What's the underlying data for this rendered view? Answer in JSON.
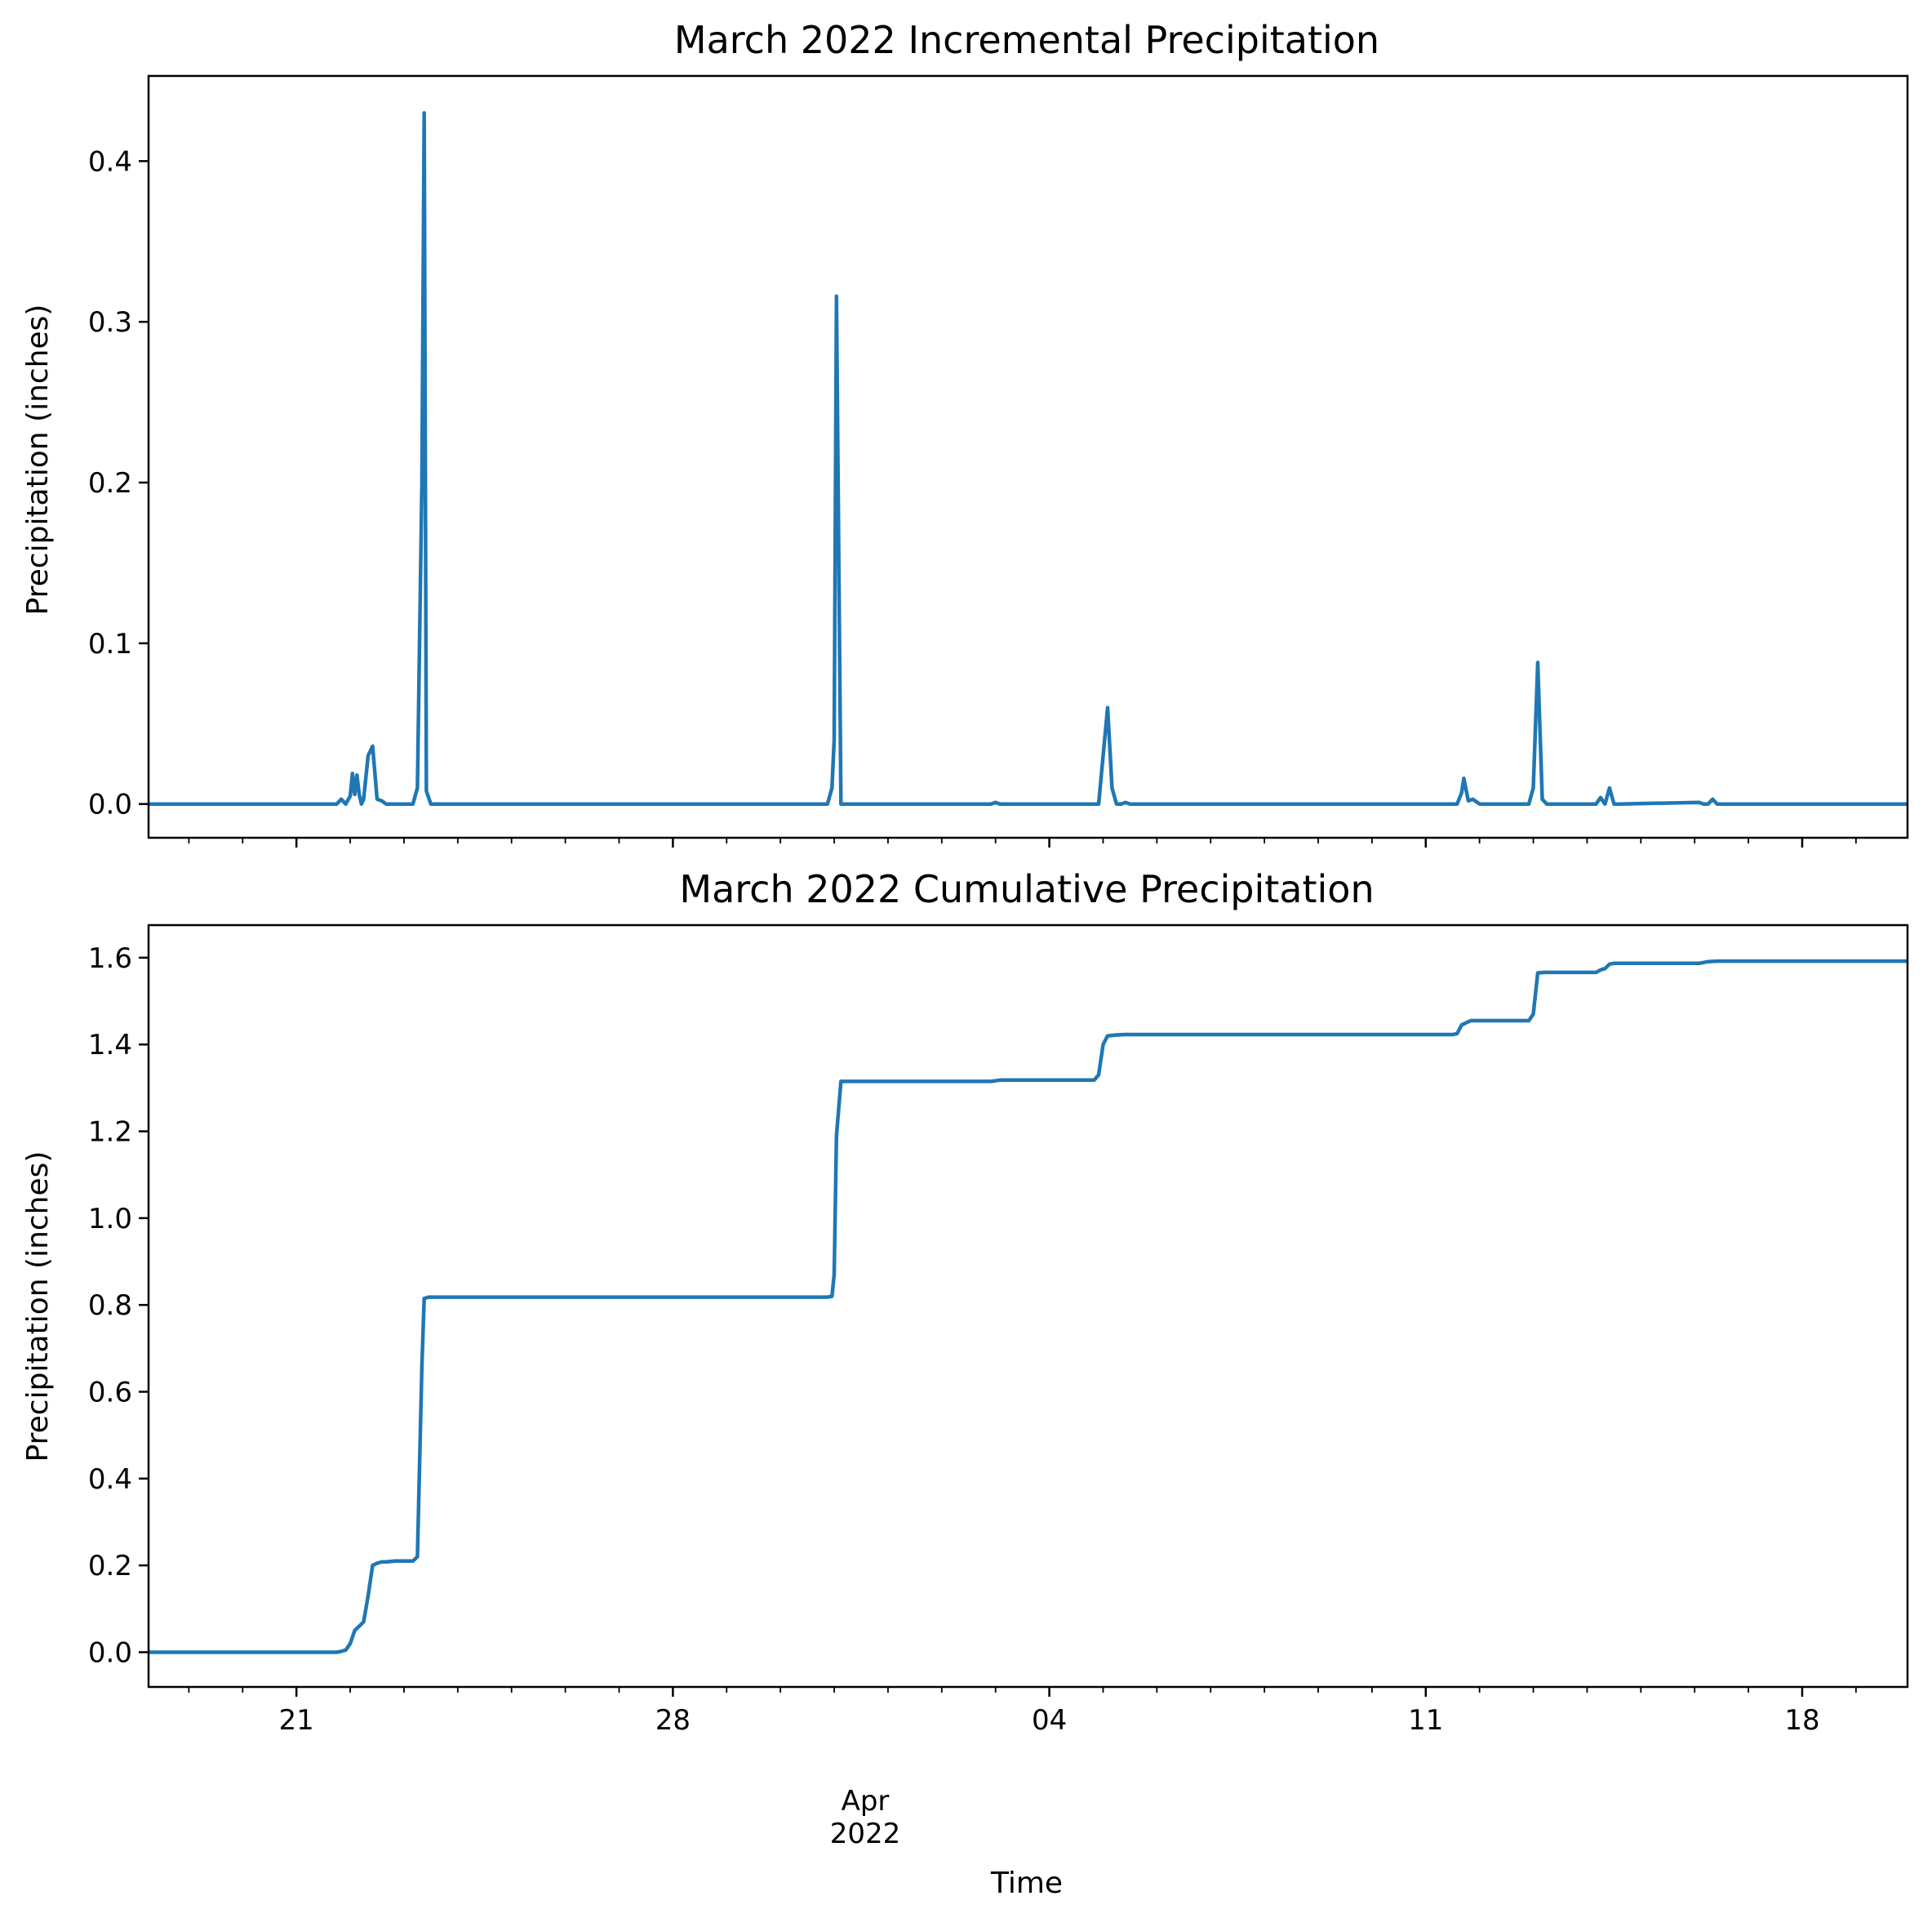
{
  "chart_data": [
    {
      "type": "line",
      "title": "March 2022 Incremental Precipitation",
      "xlabel": "",
      "ylabel": "Precipitation (inches)",
      "ylim": [
        -0.021,
        0.453
      ],
      "xlim": [
        "2022-03-18T06:00",
        "2022-04-19T23:00"
      ],
      "yticks": [
        0.0,
        0.1,
        0.2,
        0.3,
        0.4
      ],
      "ytick_labels": [
        "0.0",
        "0.1",
        "0.2",
        "0.3",
        "0.4"
      ],
      "grid": false,
      "color": "#1f77b4",
      "series": [
        {
          "x": [
            "2022-03-18T06:00",
            "2022-03-21T18:00",
            "2022-03-21T20:00",
            "2022-03-21T22:00",
            "2022-03-22T00:00",
            "2022-03-22T01:00",
            "2022-03-22T02:00",
            "2022-03-22T03:00",
            "2022-03-22T04:00",
            "2022-03-22T05:00",
            "2022-03-22T06:00",
            "2022-03-22T08:00",
            "2022-03-22T10:00",
            "2022-03-22T12:00",
            "2022-03-22T14:00",
            "2022-03-22T16:00",
            "2022-03-22T18:00",
            "2022-03-22T20:00",
            "2022-03-23T04:00",
            "2022-03-23T06:00",
            "2022-03-23T08:00",
            "2022-03-23T09:00",
            "2022-03-23T10:00",
            "2022-03-23T12:00",
            "2022-03-23T14:00",
            "2022-03-30T21:00",
            "2022-03-30T23:00",
            "2022-03-31T00:00",
            "2022-03-31T01:00",
            "2022-03-31T03:00",
            "2022-03-31T05:00",
            "2022-04-02T22:00",
            "2022-04-03T00:00",
            "2022-04-03T02:00",
            "2022-04-04T20:00",
            "2022-04-04T22:00",
            "2022-04-05T00:00",
            "2022-04-05T02:00",
            "2022-04-05T04:00",
            "2022-04-05T06:00",
            "2022-04-05T08:00",
            "2022-04-05T10:00",
            "2022-04-05T12:00",
            "2022-04-05T14:00",
            "2022-04-11T12:00",
            "2022-04-11T14:00",
            "2022-04-11T16:00",
            "2022-04-11T17:00",
            "2022-04-11T19:00",
            "2022-04-11T21:00",
            "2022-04-12T00:00",
            "2022-04-12T22:00",
            "2022-04-13T00:00",
            "2022-04-13T02:00",
            "2022-04-13T04:00",
            "2022-04-13T06:00",
            "2022-04-14T04:00",
            "2022-04-14T06:00",
            "2022-04-14T08:00",
            "2022-04-14T10:00",
            "2022-04-14T12:00",
            "2022-04-14T14:00",
            "2022-04-16T02:00",
            "2022-04-16T04:00",
            "2022-04-16T06:00",
            "2022-04-16T08:00",
            "2022-04-16T10:00",
            "2022-04-19T23:00"
          ],
          "y": [
            0,
            0,
            0.003,
            0,
            0.005,
            0.019,
            0.006,
            0.018,
            0.006,
            0,
            0.003,
            0.03,
            0.036,
            0.003,
            0.002,
            0,
            0,
            0,
            0,
            0.01,
            0.2,
            0.43,
            0.008,
            0,
            0,
            0,
            0.01,
            0.04,
            0.316,
            0,
            0,
            0,
            0.001,
            0,
            0,
            0,
            0.03,
            0.06,
            0.01,
            0,
            0,
            0.001,
            0,
            0,
            0,
            0,
            0.007,
            0.016,
            0.002,
            0.003,
            0,
            0,
            0.01,
            0.088,
            0.003,
            0,
            0,
            0.004,
            0,
            0.01,
            0,
            0,
            0.001,
            0,
            0,
            0.003,
            0,
            0
          ]
        }
      ]
    },
    {
      "type": "line",
      "title": "March 2022 Cumulative Precipitation",
      "xlabel": "Time",
      "ylabel": "Precipitation (inches)",
      "ylim": [
        -0.08,
        1.675
      ],
      "xlim": [
        "2022-03-18T06:00",
        "2022-04-19T23:00"
      ],
      "yticks": [
        0.0,
        0.2,
        0.4,
        0.6,
        0.8,
        1.0,
        1.2,
        1.4,
        1.6
      ],
      "ytick_labels": [
        "0.0",
        "0.2",
        "0.4",
        "0.6",
        "0.8",
        "1.0",
        "1.2",
        "1.4",
        "1.6"
      ],
      "xticks": [
        "2022-03-21",
        "2022-03-28",
        "2022-04-04",
        "2022-04-11",
        "2022-04-18"
      ],
      "xtick_labels": [
        "21",
        "28",
        "04",
        "11",
        "18"
      ],
      "x_offset_label": "Apr\n2022",
      "x_offset_label_lines": [
        "Apr",
        "2022"
      ],
      "grid": false,
      "color": "#1f77b4",
      "series": [
        {
          "x": [
            "2022-03-18T06:00",
            "2022-03-21T18:00",
            "2022-03-21T20:00",
            "2022-03-21T22:00",
            "2022-03-22T00:00",
            "2022-03-22T02:00",
            "2022-03-22T04:00",
            "2022-03-22T06:00",
            "2022-03-22T08:00",
            "2022-03-22T10:00",
            "2022-03-22T12:00",
            "2022-03-22T14:00",
            "2022-03-22T16:00",
            "2022-03-22T20:00",
            "2022-03-23T04:00",
            "2022-03-23T06:00",
            "2022-03-23T08:00",
            "2022-03-23T09:00",
            "2022-03-23T11:00",
            "2022-03-23T13:00",
            "2022-03-30T21:00",
            "2022-03-30T23:00",
            "2022-03-31T00:00",
            "2022-03-31T01:00",
            "2022-03-31T03:00",
            "2022-04-02T22:00",
            "2022-04-03T02:00",
            "2022-04-04T20:00",
            "2022-04-04T22:00",
            "2022-04-05T00:00",
            "2022-04-05T02:00",
            "2022-04-05T06:00",
            "2022-04-05T10:00",
            "2022-04-11T12:00",
            "2022-04-11T14:00",
            "2022-04-11T16:00",
            "2022-04-11T20:00",
            "2022-04-12T22:00",
            "2022-04-13T00:00",
            "2022-04-13T02:00",
            "2022-04-13T05:00",
            "2022-04-14T04:00",
            "2022-04-14T06:00",
            "2022-04-14T08:00",
            "2022-04-14T10:00",
            "2022-04-14T12:00",
            "2022-04-16T02:00",
            "2022-04-16T06:00",
            "2022-04-16T10:00",
            "2022-04-19T23:00"
          ],
          "y": [
            0,
            0,
            0.002,
            0.005,
            0.02,
            0.05,
            0.06,
            0.07,
            0.13,
            0.2,
            0.205,
            0.208,
            0.208,
            0.21,
            0.21,
            0.22,
            0.66,
            0.815,
            0.818,
            0.818,
            0.818,
            0.82,
            0.87,
            1.19,
            1.315,
            1.315,
            1.318,
            1.318,
            1.33,
            1.4,
            1.42,
            1.422,
            1.423,
            1.423,
            1.425,
            1.445,
            1.455,
            1.455,
            1.47,
            1.565,
            1.566,
            1.566,
            1.572,
            1.575,
            1.585,
            1.587,
            1.587,
            1.591,
            1.592,
            1.592
          ]
        }
      ]
    }
  ]
}
